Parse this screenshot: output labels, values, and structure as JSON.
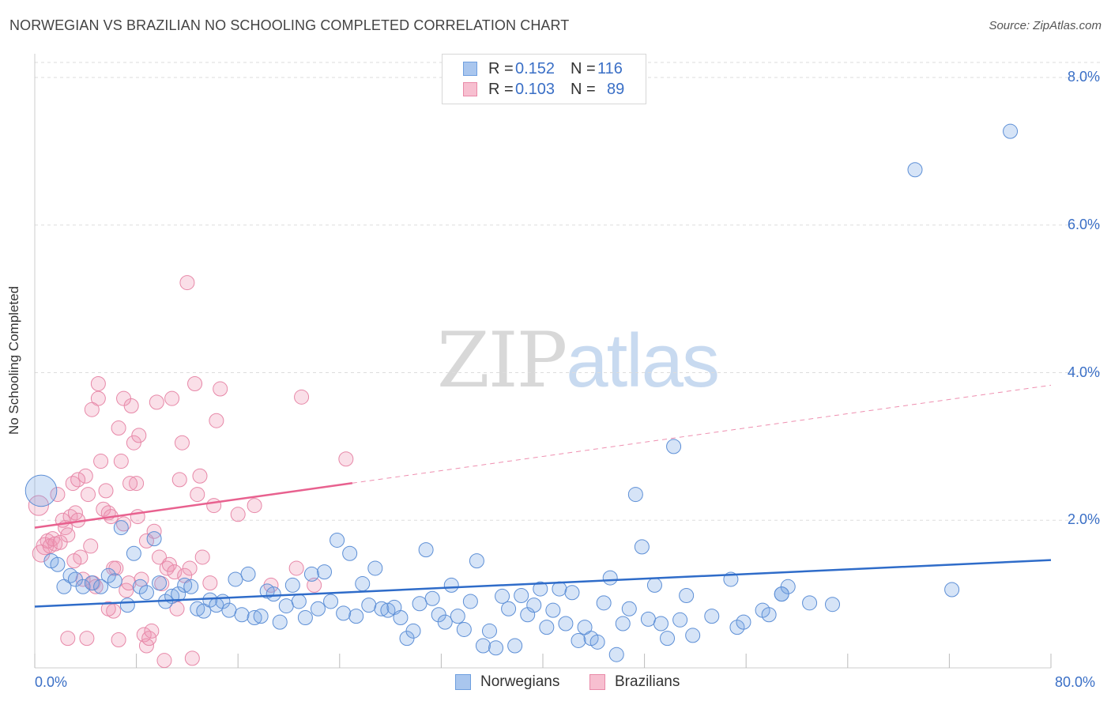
{
  "header": {
    "title": "NORWEGIAN VS BRAZILIAN NO SCHOOLING COMPLETED CORRELATION CHART",
    "source": "Source: ZipAtlas.com"
  },
  "watermark": {
    "zip": "ZIP",
    "atlas": "atlas"
  },
  "legend": {
    "rows": [
      {
        "r_label": "R =",
        "r_value": "0.152",
        "n_label": "N =",
        "n_value": "116",
        "color": "#a9c6ee",
        "border": "#6f9fdf"
      },
      {
        "r_label": "R =",
        "r_value": "0.103",
        "n_label": "N =",
        "n_value": "89",
        "color": "#f7bfd0",
        "border": "#e98aa8"
      }
    ]
  },
  "bottom_legend": {
    "norwegians": "Norwegians",
    "brazilians": "Brazilians"
  },
  "colors": {
    "blue_fill": "rgba(120,165,230,0.30)",
    "blue_stroke": "#5d8fd6",
    "blue_line": "#2f6cc9",
    "pink_fill": "rgba(240,150,180,0.30)",
    "pink_stroke": "#e788a8",
    "pink_line": "#e8618f",
    "grid": "#dddddd",
    "tick_text": "#3a6fc6"
  },
  "chart_data": {
    "type": "scatter",
    "title": "NORWEGIAN VS BRAZILIAN NO SCHOOLING COMPLETED CORRELATION CHART",
    "xlabel": "",
    "ylabel": "No Schooling Completed",
    "xlim": [
      0,
      80
    ],
    "ylim": [
      0,
      8.3
    ],
    "x_tick_labels": [
      "0.0%",
      "80.0%"
    ],
    "y_ticks": [
      2,
      4,
      6,
      8
    ],
    "y_tick_labels": [
      "2.0%",
      "4.0%",
      "6.0%",
      "8.0%"
    ],
    "grid": true,
    "legend_position": "top-center",
    "series": [
      {
        "name": "Norwegians",
        "r": 0.152,
        "n": 116,
        "trend": {
          "x0": 0,
          "y0": 0.83,
          "x1": 80,
          "y1": 1.46,
          "dashed_from": null
        },
        "points": [
          [
            0.5,
            2.4,
            2.2
          ],
          [
            1.3,
            1.45,
            1
          ],
          [
            1.8,
            1.4,
            1
          ],
          [
            2.3,
            1.1,
            1
          ],
          [
            2.8,
            1.25,
            1
          ],
          [
            3.2,
            1.2,
            1
          ],
          [
            3.8,
            1.1,
            1
          ],
          [
            4.5,
            1.15,
            1
          ],
          [
            5.2,
            1.1,
            1
          ],
          [
            5.8,
            1.25,
            1
          ],
          [
            6.3,
            1.18,
            1
          ],
          [
            6.8,
            1.9,
            1
          ],
          [
            7.3,
            0.85,
            1
          ],
          [
            7.8,
            1.55,
            1
          ],
          [
            8.3,
            1.1,
            1
          ],
          [
            8.8,
            1.02,
            1
          ],
          [
            9.4,
            1.75,
            1
          ],
          [
            9.8,
            1.15,
            1
          ],
          [
            10.3,
            0.9,
            1
          ],
          [
            10.8,
            0.97,
            1
          ],
          [
            11.3,
            1.0,
            1
          ],
          [
            11.8,
            1.12,
            1
          ],
          [
            12.3,
            1.1,
            1
          ],
          [
            12.8,
            0.8,
            1
          ],
          [
            13.3,
            0.77,
            1
          ],
          [
            13.8,
            0.92,
            1
          ],
          [
            14.3,
            0.85,
            1
          ],
          [
            14.8,
            0.9,
            1
          ],
          [
            15.3,
            0.78,
            1
          ],
          [
            15.8,
            1.2,
            1
          ],
          [
            16.3,
            0.72,
            1
          ],
          [
            16.8,
            1.27,
            1
          ],
          [
            17.3,
            0.68,
            1
          ],
          [
            17.8,
            0.7,
            1
          ],
          [
            18.3,
            1.04,
            1
          ],
          [
            18.8,
            1.0,
            1
          ],
          [
            19.3,
            0.62,
            1
          ],
          [
            19.8,
            0.84,
            1
          ],
          [
            20.3,
            1.12,
            1
          ],
          [
            20.8,
            0.9,
            1
          ],
          [
            21.3,
            0.68,
            1
          ],
          [
            21.8,
            1.27,
            1
          ],
          [
            22.3,
            0.8,
            1
          ],
          [
            22.8,
            1.3,
            1
          ],
          [
            23.3,
            0.9,
            1
          ],
          [
            23.8,
            1.73,
            1
          ],
          [
            24.3,
            0.74,
            1
          ],
          [
            24.8,
            1.55,
            1
          ],
          [
            25.3,
            0.7,
            1
          ],
          [
            25.8,
            1.14,
            1
          ],
          [
            26.3,
            0.85,
            1
          ],
          [
            26.8,
            1.35,
            1
          ],
          [
            27.3,
            0.8,
            1
          ],
          [
            27.8,
            0.78,
            1
          ],
          [
            28.3,
            0.82,
            1
          ],
          [
            28.8,
            0.68,
            1
          ],
          [
            29.3,
            0.4,
            1
          ],
          [
            29.8,
            0.5,
            1
          ],
          [
            30.3,
            0.87,
            1
          ],
          [
            30.8,
            1.6,
            1
          ],
          [
            31.3,
            0.94,
            1
          ],
          [
            31.8,
            0.72,
            1
          ],
          [
            32.3,
            0.62,
            1
          ],
          [
            32.8,
            1.12,
            1
          ],
          [
            33.3,
            0.7,
            1
          ],
          [
            33.8,
            0.52,
            1
          ],
          [
            34.3,
            0.9,
            1
          ],
          [
            34.8,
            1.45,
            1
          ],
          [
            35.3,
            0.3,
            1
          ],
          [
            35.8,
            0.5,
            1
          ],
          [
            36.3,
            0.27,
            1
          ],
          [
            36.8,
            0.97,
            1
          ],
          [
            37.3,
            0.8,
            1
          ],
          [
            37.8,
            0.3,
            1
          ],
          [
            38.3,
            0.98,
            1
          ],
          [
            38.8,
            0.72,
            1
          ],
          [
            39.3,
            0.85,
            1
          ],
          [
            39.8,
            1.07,
            1
          ],
          [
            40.3,
            0.55,
            1
          ],
          [
            40.8,
            0.78,
            1
          ],
          [
            41.3,
            1.07,
            1
          ],
          [
            41.8,
            0.6,
            1
          ],
          [
            42.3,
            1.02,
            1
          ],
          [
            42.8,
            0.37,
            1
          ],
          [
            43.3,
            0.55,
            1
          ],
          [
            43.8,
            0.4,
            1
          ],
          [
            44.3,
            0.35,
            1
          ],
          [
            44.8,
            0.88,
            1
          ],
          [
            45.3,
            1.22,
            1
          ],
          [
            45.8,
            0.18,
            1
          ],
          [
            46.3,
            0.6,
            1
          ],
          [
            46.8,
            0.8,
            1
          ],
          [
            47.3,
            2.35,
            1
          ],
          [
            47.8,
            1.64,
            1
          ],
          [
            48.3,
            0.66,
            1
          ],
          [
            48.8,
            1.12,
            1
          ],
          [
            49.3,
            0.6,
            1
          ],
          [
            49.8,
            0.4,
            1
          ],
          [
            50.3,
            3.0,
            1
          ],
          [
            50.8,
            0.65,
            1
          ],
          [
            51.3,
            0.98,
            1
          ],
          [
            51.8,
            0.44,
            1
          ],
          [
            53.3,
            0.7,
            1
          ],
          [
            54.8,
            1.2,
            1
          ],
          [
            55.3,
            0.55,
            1
          ],
          [
            55.8,
            0.62,
            1
          ],
          [
            57.3,
            0.78,
            1
          ],
          [
            57.8,
            0.72,
            1
          ],
          [
            58.8,
            1.0,
            1
          ],
          [
            59.3,
            1.1,
            1
          ],
          [
            61.0,
            0.88,
            1
          ],
          [
            62.8,
            0.86,
            1
          ],
          [
            69.3,
            6.75,
            1
          ],
          [
            72.2,
            1.06,
            1
          ],
          [
            76.8,
            7.27,
            1
          ],
          [
            58.8,
            1.0,
            1
          ]
        ]
      },
      {
        "name": "Brazilians",
        "r": 0.103,
        "n": 89,
        "trend": {
          "x0": 0,
          "y0": 1.9,
          "x1": 80,
          "y1": 3.83,
          "dashed_from": 25
        },
        "points": [
          [
            0.3,
            2.2,
            1.4
          ],
          [
            0.5,
            1.55,
            1.2
          ],
          [
            0.8,
            1.65,
            1.2
          ],
          [
            1.0,
            1.72,
            1
          ],
          [
            1.2,
            1.65,
            1
          ],
          [
            1.4,
            1.75,
            1
          ],
          [
            1.6,
            1.68,
            1
          ],
          [
            1.8,
            2.35,
            1
          ],
          [
            2.0,
            1.7,
            1
          ],
          [
            2.2,
            2.0,
            1
          ],
          [
            2.4,
            1.9,
            1
          ],
          [
            2.6,
            1.8,
            1
          ],
          [
            2.8,
            2.05,
            1
          ],
          [
            3.0,
            2.5,
            1
          ],
          [
            3.2,
            2.1,
            1
          ],
          [
            3.4,
            2.0,
            1
          ],
          [
            3.6,
            1.5,
            1
          ],
          [
            3.8,
            1.2,
            1
          ],
          [
            4.0,
            2.6,
            1
          ],
          [
            4.2,
            2.35,
            1
          ],
          [
            4.4,
            1.65,
            1
          ],
          [
            4.6,
            1.15,
            1
          ],
          [
            4.8,
            1.1,
            1
          ],
          [
            5.0,
            3.65,
            1
          ],
          [
            5.2,
            2.8,
            1
          ],
          [
            5.4,
            2.15,
            1
          ],
          [
            5.6,
            2.4,
            1
          ],
          [
            5.8,
            2.1,
            1
          ],
          [
            6.0,
            2.05,
            1
          ],
          [
            6.2,
            0.77,
            1
          ],
          [
            6.4,
            1.35,
            1
          ],
          [
            6.6,
            3.25,
            1
          ],
          [
            6.8,
            2.8,
            1
          ],
          [
            7.0,
            1.95,
            1
          ],
          [
            7.2,
            1.05,
            1
          ],
          [
            7.4,
            1.15,
            1
          ],
          [
            7.6,
            3.55,
            1
          ],
          [
            7.8,
            3.05,
            1
          ],
          [
            8.0,
            2.5,
            1
          ],
          [
            8.2,
            3.15,
            1
          ],
          [
            8.4,
            1.2,
            1
          ],
          [
            8.6,
            0.45,
            1
          ],
          [
            8.8,
            0.3,
            1
          ],
          [
            9.0,
            0.4,
            1
          ],
          [
            9.2,
            0.5,
            1
          ],
          [
            9.4,
            1.85,
            1
          ],
          [
            9.6,
            3.6,
            1
          ],
          [
            9.8,
            1.5,
            1
          ],
          [
            10.0,
            1.14,
            1
          ],
          [
            10.2,
            0.1,
            1
          ],
          [
            10.4,
            1.35,
            1
          ],
          [
            10.6,
            1.4,
            1
          ],
          [
            10.8,
            3.65,
            1
          ],
          [
            11.0,
            1.3,
            1
          ],
          [
            11.2,
            0.8,
            1
          ],
          [
            11.4,
            2.55,
            1
          ],
          [
            11.6,
            3.05,
            1
          ],
          [
            11.8,
            1.25,
            1
          ],
          [
            12.0,
            5.22,
            1
          ],
          [
            12.2,
            1.35,
            1
          ],
          [
            12.4,
            0.13,
            1
          ],
          [
            12.6,
            3.85,
            1
          ],
          [
            12.8,
            2.35,
            1
          ],
          [
            13.0,
            2.6,
            1
          ],
          [
            13.2,
            1.5,
            1
          ],
          [
            13.8,
            1.15,
            1
          ],
          [
            14.1,
            2.2,
            1
          ],
          [
            14.3,
            3.35,
            1
          ],
          [
            14.6,
            3.78,
            1
          ],
          [
            16.0,
            2.08,
            1
          ],
          [
            17.3,
            2.2,
            1
          ],
          [
            18.6,
            1.12,
            1
          ],
          [
            20.6,
            1.35,
            1
          ],
          [
            21.0,
            3.67,
            1
          ],
          [
            22.0,
            1.12,
            1
          ],
          [
            24.5,
            2.83,
            1
          ],
          [
            2.6,
            0.4,
            1
          ],
          [
            4.1,
            0.4,
            1
          ],
          [
            4.5,
            3.5,
            1
          ],
          [
            5.0,
            3.85,
            1
          ],
          [
            3.1,
            1.45,
            1
          ],
          [
            3.4,
            2.55,
            1
          ],
          [
            5.8,
            0.8,
            1
          ],
          [
            6.2,
            1.35,
            1
          ],
          [
            6.6,
            0.38,
            1
          ],
          [
            7.0,
            3.65,
            1
          ],
          [
            7.5,
            2.5,
            1
          ],
          [
            8.1,
            2.05,
            1
          ],
          [
            8.8,
            1.72,
            1
          ]
        ]
      }
    ]
  }
}
